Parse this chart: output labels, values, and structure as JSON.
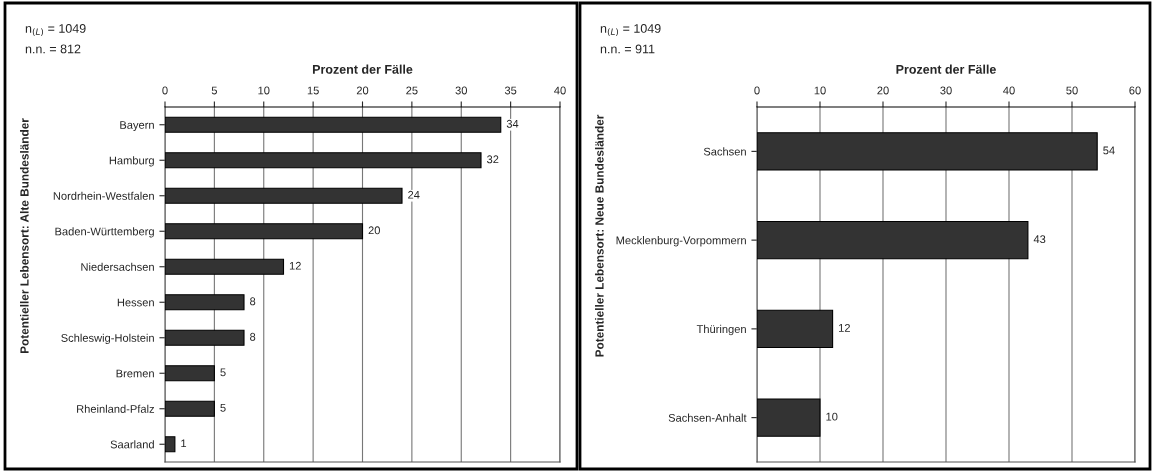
{
  "chart_data": [
    {
      "type": "bar",
      "orientation": "horizontal",
      "title": "Prozent der Fälle",
      "ylabel": "Potentieller Lebensort: Alte Bundesländer",
      "categories": [
        "Bayern",
        "Hamburg",
        "Nordrhein-Westfalen",
        "Baden-Württemberg",
        "Niedersachsen",
        "Hessen",
        "Schleswig-Holstein",
        "Bremen",
        "Rheinland-Pfalz",
        "Saarland"
      ],
      "values": [
        34,
        32,
        24,
        20,
        12,
        8,
        8,
        5,
        5,
        1
      ],
      "color": "#333333",
      "data_labels": true,
      "xlim": [
        0,
        40
      ],
      "xticks": [
        0,
        5,
        10,
        15,
        20,
        25,
        30,
        35,
        40
      ],
      "grid": "x",
      "annotations": [
        "n$_{(L)}$ = 1049",
        "n.n. = 812"
      ]
    },
    {
      "type": "bar",
      "orientation": "horizontal",
      "title": "Prozent der Fälle",
      "ylabel": "Potentieller Lebensort: Neue Bundesländer",
      "categories": [
        "Sachsen",
        "Mecklenburg-Vorpommern",
        "Thüringen",
        "Sachsen-Anhalt"
      ],
      "values": [
        54,
        43,
        12,
        10
      ],
      "color": "#333333",
      "data_labels": true,
      "xlim": [
        0,
        60
      ],
      "xticks": [
        0,
        10,
        20,
        30,
        40,
        50,
        60
      ],
      "grid": "x",
      "annotations": [
        "n$_{(L)}$ = 1049",
        "n.n. = 911"
      ]
    }
  ]
}
